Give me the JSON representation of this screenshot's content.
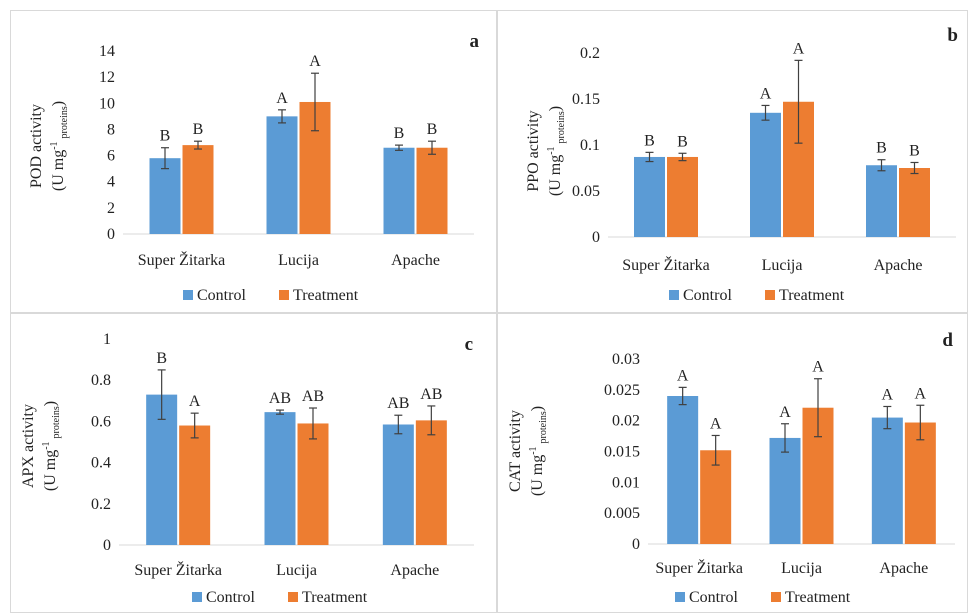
{
  "colors": {
    "control": "#5b9bd5",
    "treatment": "#ed7d31",
    "errorbar": "#404040"
  },
  "legend": {
    "control": "Control",
    "treatment": "Treatment"
  },
  "chart_data": [
    {
      "type": "bar",
      "panel_letter": "a",
      "ylabel": "POD activity",
      "yunit_main": "(U mg",
      "yunit_sup": "-1",
      "yunit_sub": "proteins",
      "yunit_close": ")",
      "ylim": [
        0,
        14
      ],
      "yticks": [
        "0",
        "2",
        "4",
        "6",
        "8",
        "10",
        "12",
        "14"
      ],
      "categories": [
        "Super Žitarka",
        "Lucija",
        "Apache"
      ],
      "series": [
        {
          "name": "Control",
          "values": [
            5.8,
            9.0,
            6.6
          ],
          "errors": [
            0.8,
            0.5,
            0.2
          ],
          "letters": [
            "B",
            "A",
            "B"
          ]
        },
        {
          "name": "Treatment",
          "values": [
            6.8,
            10.1,
            6.6
          ],
          "errors": [
            0.3,
            2.2,
            0.5
          ],
          "letters": [
            "B",
            "A",
            "B"
          ]
        }
      ],
      "grid": false,
      "legend_position": "bottom"
    },
    {
      "type": "bar",
      "panel_letter": "b",
      "ylabel": "PPO activity",
      "yunit_main": "(U mg",
      "yunit_sup": "-1",
      "yunit_sub": "proteins",
      "yunit_close": ")",
      "ylim": [
        0,
        0.2
      ],
      "yticks": [
        "0",
        "0.05",
        "0.1",
        "0.15",
        "0.2"
      ],
      "categories": [
        "Super Žitarka",
        "Lucija",
        "Apache"
      ],
      "series": [
        {
          "name": "Control",
          "values": [
            0.087,
            0.135,
            0.078
          ],
          "errors": [
            0.005,
            0.008,
            0.006
          ],
          "letters": [
            "B",
            "A",
            "B"
          ]
        },
        {
          "name": "Treatment",
          "values": [
            0.087,
            0.147,
            0.075
          ],
          "errors": [
            0.004,
            0.045,
            0.006
          ],
          "letters": [
            "B",
            "A",
            "B"
          ]
        }
      ],
      "grid": false,
      "legend_position": "bottom"
    },
    {
      "type": "bar",
      "panel_letter": "c",
      "ylabel": "APX activity",
      "yunit_main": "(U mg",
      "yunit_sup": "-1",
      "yunit_sub": "proteins",
      "yunit_close": ")",
      "ylim": [
        0,
        1
      ],
      "yticks": [
        "0",
        "0.2",
        "0.4",
        "0.6",
        "0.8",
        "1"
      ],
      "categories": [
        "Super Žitarka",
        "Lucija",
        "Apache"
      ],
      "series": [
        {
          "name": "Control",
          "values": [
            0.73,
            0.645,
            0.585
          ],
          "errors": [
            0.12,
            0.01,
            0.045
          ],
          "letters": [
            "B",
            "AB",
            "AB"
          ]
        },
        {
          "name": "Treatment",
          "values": [
            0.58,
            0.59,
            0.605
          ],
          "errors": [
            0.06,
            0.075,
            0.07
          ],
          "letters": [
            "A",
            "AB",
            "AB"
          ]
        }
      ],
      "grid": false,
      "legend_position": "bottom"
    },
    {
      "type": "bar",
      "panel_letter": "d",
      "ylabel": "CAT activity",
      "yunit_main": "(U mg",
      "yunit_sup": "-1",
      "yunit_sub": "proteins",
      "yunit_close": ")",
      "ylim": [
        0,
        0.03
      ],
      "yticks": [
        "0",
        "0.005",
        "0.01",
        "0.015",
        "0.02",
        "0.025",
        "0.03"
      ],
      "categories": [
        "Super Žitarka",
        "Lucija",
        "Apache"
      ],
      "series": [
        {
          "name": "Control",
          "values": [
            0.024,
            0.0172,
            0.0205
          ],
          "errors": [
            0.0014,
            0.0023,
            0.0018
          ],
          "letters": [
            "A",
            "A",
            "A"
          ]
        },
        {
          "name": "Treatment",
          "values": [
            0.0152,
            0.0221,
            0.0197
          ],
          "errors": [
            0.0024,
            0.0047,
            0.0028
          ],
          "letters": [
            "A",
            "A",
            "A"
          ]
        }
      ],
      "grid": false,
      "legend_position": "bottom"
    }
  ]
}
